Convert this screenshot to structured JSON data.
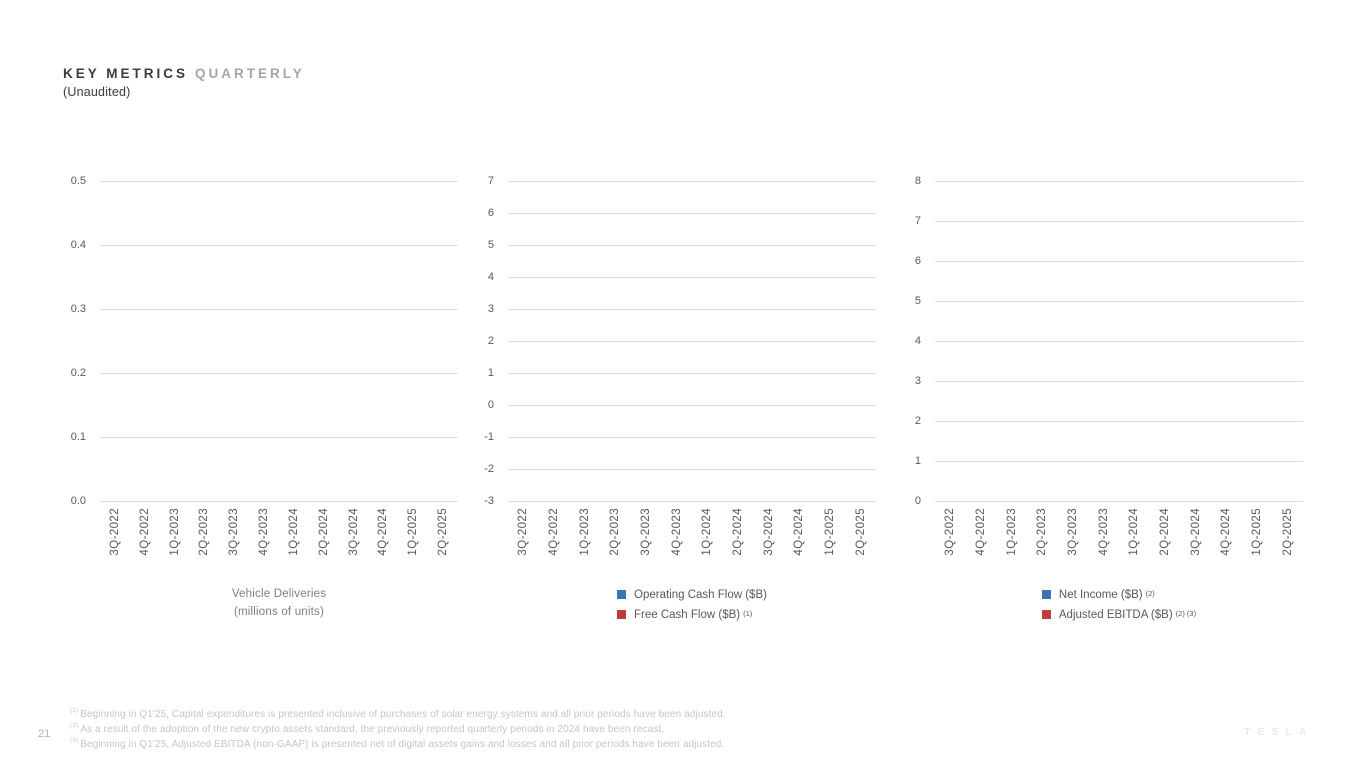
{
  "slide": {
    "title_primary": "KEY METRICS",
    "title_secondary": "QUARTERLY",
    "subtitle": "(Unaudited)",
    "page_number": "21",
    "brand_watermark": "TESLA"
  },
  "colors": {
    "title_primary_text": "#3B3B3B",
    "title_secondary_text": "#A6A6A6",
    "axis_text": "#595959",
    "grid": "#DBDBDB",
    "chart_title_text": "#7F7F7F",
    "footnote_text": "#C6C6C6",
    "page_number_text": "#B3B3B3",
    "brand_text": "#E9E9E9",
    "series_blue": "#3B74B5",
    "series_red": "#BE3D38"
  },
  "chart_data": [
    {
      "type": "bar",
      "title": "Vehicle Deliveries",
      "subtitle": "(millions of units)",
      "categories": [
        "3Q-2022",
        "4Q-2022",
        "1Q-2023",
        "2Q-2023",
        "3Q-2023",
        "4Q-2023",
        "1Q-2024",
        "2Q-2024",
        "3Q-2024",
        "4Q-2024",
        "1Q-2025",
        "2Q-2025"
      ],
      "series": [],
      "ylim": [
        0.0,
        0.5
      ],
      "yticks": [
        "0.5",
        "0.4",
        "0.3",
        "0.2",
        "0.1",
        "0.0"
      ],
      "grid": true,
      "legend_position": "bottom",
      "note": "axes and gridlines only; no data series plotted in the image"
    },
    {
      "type": "bar",
      "title": "",
      "subtitle": "",
      "categories": [
        "3Q-2022",
        "4Q-2022",
        "1Q-2023",
        "2Q-2023",
        "3Q-2023",
        "4Q-2023",
        "1Q-2024",
        "2Q-2024",
        "3Q-2024",
        "4Q-2024",
        "1Q-2025",
        "2Q-2025"
      ],
      "series": [
        {
          "name": "Operating Cash Flow ($B)",
          "sup": "",
          "color": "#3B74B5",
          "values": []
        },
        {
          "name": "Free Cash Flow ($B)",
          "sup": "(1)",
          "color": "#BE3D38",
          "values": []
        }
      ],
      "ylim": [
        -3,
        7
      ],
      "yticks": [
        "7",
        "6",
        "5",
        "4",
        "3",
        "2",
        "1",
        "0",
        "-1",
        "-2",
        "-3"
      ],
      "grid": true,
      "legend_position": "bottom",
      "note": "axes and gridlines only; no data series plotted in the image"
    },
    {
      "type": "bar",
      "title": "",
      "subtitle": "",
      "categories": [
        "3Q-2022",
        "4Q-2022",
        "1Q-2023",
        "2Q-2023",
        "3Q-2023",
        "4Q-2023",
        "1Q-2024",
        "2Q-2024",
        "3Q-2024",
        "4Q-2024",
        "1Q-2025",
        "2Q-2025"
      ],
      "series": [
        {
          "name": "Net Income ($B)",
          "sup": "(2)",
          "color": "#3B74B5",
          "values": []
        },
        {
          "name": "Adjusted EBITDA ($B)",
          "sup": "(2) (3)",
          "color": "#BE3D38",
          "values": []
        }
      ],
      "ylim": [
        0,
        8
      ],
      "yticks": [
        "8",
        "7",
        "6",
        "5",
        "4",
        "3",
        "2",
        "1",
        "0"
      ],
      "grid": true,
      "legend_position": "bottom",
      "note": "axes and gridlines only; no data series plotted in the image"
    }
  ],
  "footnotes": [
    {
      "marker": "(1)",
      "text": "Beginning in Q1'25, Capital expenditures is presented inclusive of purchases of solar energy systems and all prior periods have been adjusted."
    },
    {
      "marker": "(2)",
      "text": "As a result of the adoption of the new crypto assets standard, the previously reported quarterly periods in 2024 have been recast."
    },
    {
      "marker": "(3)",
      "text": "Beginning in Q1'25, Adjusted EBITDA (non-GAAP) is presented net of digital assets gains and losses and all prior periods have been adjusted."
    }
  ]
}
